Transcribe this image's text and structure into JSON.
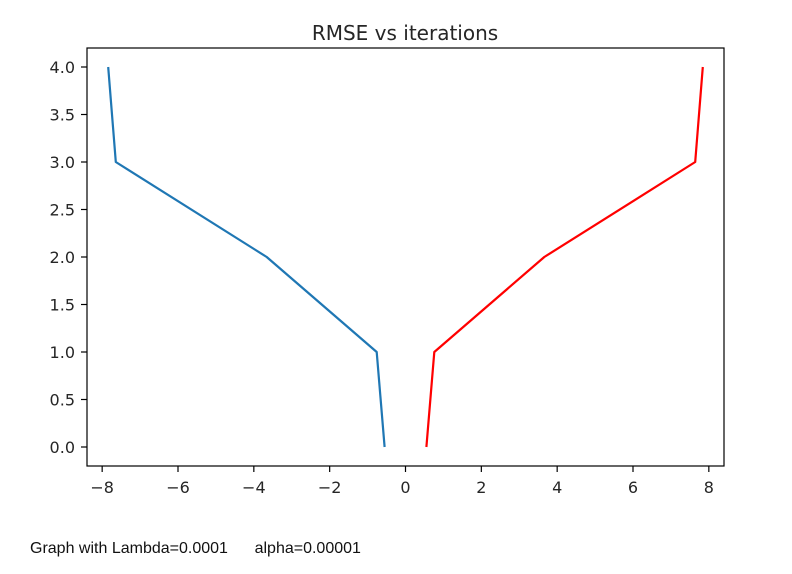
{
  "chart_data": {
    "type": "line",
    "title": "RMSE vs iterations",
    "xlabel": "",
    "ylabel": "",
    "xlim": [
      -8.4,
      8.4
    ],
    "ylim": [
      -0.2,
      4.2
    ],
    "xticks": [
      -8,
      -6,
      -4,
      -2,
      0,
      2,
      4,
      6,
      8
    ],
    "xtick_labels": [
      "−8",
      "−6",
      "−4",
      "−2",
      "0",
      "2",
      "4",
      "6",
      "8"
    ],
    "yticks": [
      0.0,
      0.5,
      1.0,
      1.5,
      2.0,
      2.5,
      3.0,
      3.5,
      4.0
    ],
    "ytick_labels": [
      "0.0",
      "0.5",
      "1.0",
      "1.5",
      "2.0",
      "2.5",
      "3.0",
      "3.5",
      "4.0"
    ],
    "grid": false,
    "series": [
      {
        "color": "#1f77b4",
        "x": [
          -0.55,
          -0.76,
          -3.66,
          -7.64,
          -7.84
        ],
        "y": [
          0,
          1,
          2,
          3,
          4
        ]
      },
      {
        "color": "#ff0000",
        "x": [
          0.55,
          0.76,
          3.66,
          7.64,
          7.84
        ],
        "y": [
          0,
          1,
          2,
          3,
          4
        ]
      }
    ]
  },
  "caption": {
    "lambda_text": "Graph with Lambda=0.0001",
    "alpha_text": "alpha=0.00001"
  }
}
